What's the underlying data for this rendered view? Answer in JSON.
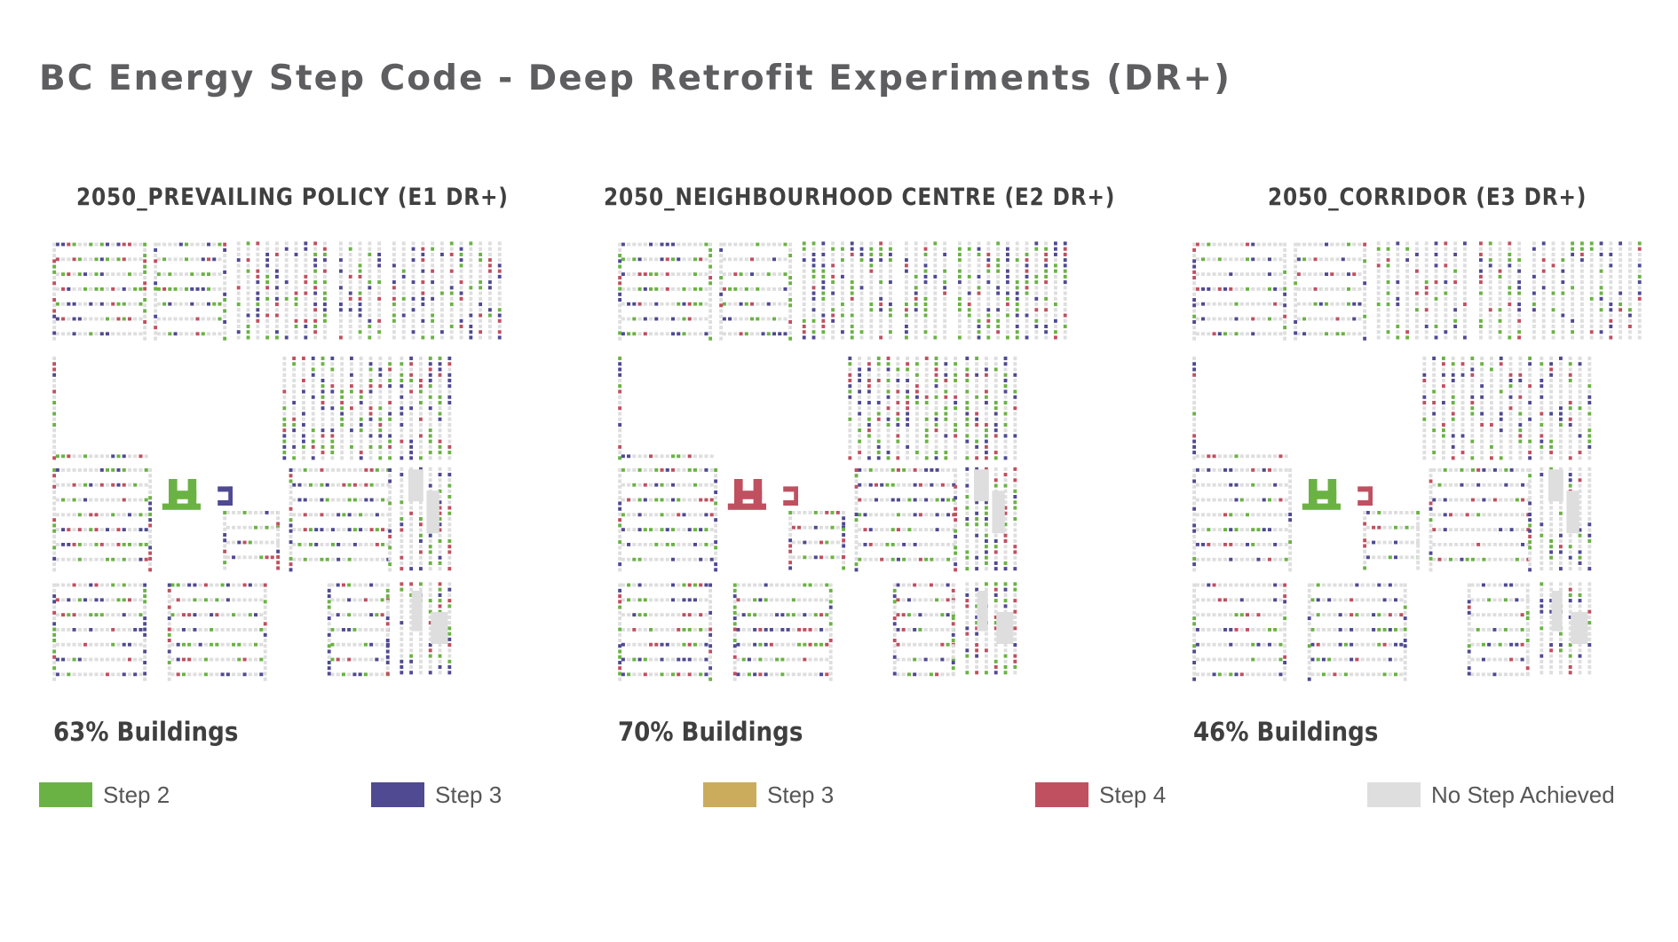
{
  "title": "BC Energy Step Code - Deep Retrofit Experiments (DR+)",
  "colors": {
    "step2": "#6bb245",
    "step3_blue": "#4f4a91",
    "step3_gold": "#cbac5c",
    "step4": "#c05060",
    "none": "#dedede"
  },
  "panels": [
    {
      "title": "2050_PREVAILING POLICY (E1 DR+)",
      "share": "63% Buildings",
      "seed": 11,
      "mix": [
        0.18,
        0.17,
        0.0,
        0.1
      ],
      "big_colour": "step2"
    },
    {
      "title": "2050_NEIGHBOURHOOD CENTRE (E2 DR+)",
      "share": "70% Buildings",
      "seed": 29,
      "mix": [
        0.2,
        0.17,
        0.0,
        0.11
      ],
      "big_colour": "step4"
    },
    {
      "title": "2050_CORRIDOR (E3 DR+)",
      "share": "46% Buildings",
      "seed": 47,
      "mix": [
        0.11,
        0.12,
        0.0,
        0.07
      ],
      "big_colour": "step2"
    }
  ],
  "legend": [
    {
      "label": "Step 2",
      "color": "#6bb245",
      "icon": "legend-swatch"
    },
    {
      "label": "Step 3",
      "color": "#4f4a91",
      "icon": "legend-swatch"
    },
    {
      "label": "Step 3",
      "color": "#cbac5c",
      "icon": "legend-swatch"
    },
    {
      "label": "Step 4",
      "color": "#c05060",
      "icon": "legend-swatch"
    },
    {
      "label": "No Step Achieved",
      "color": "#dedede",
      "icon": "legend-swatch"
    }
  ]
}
